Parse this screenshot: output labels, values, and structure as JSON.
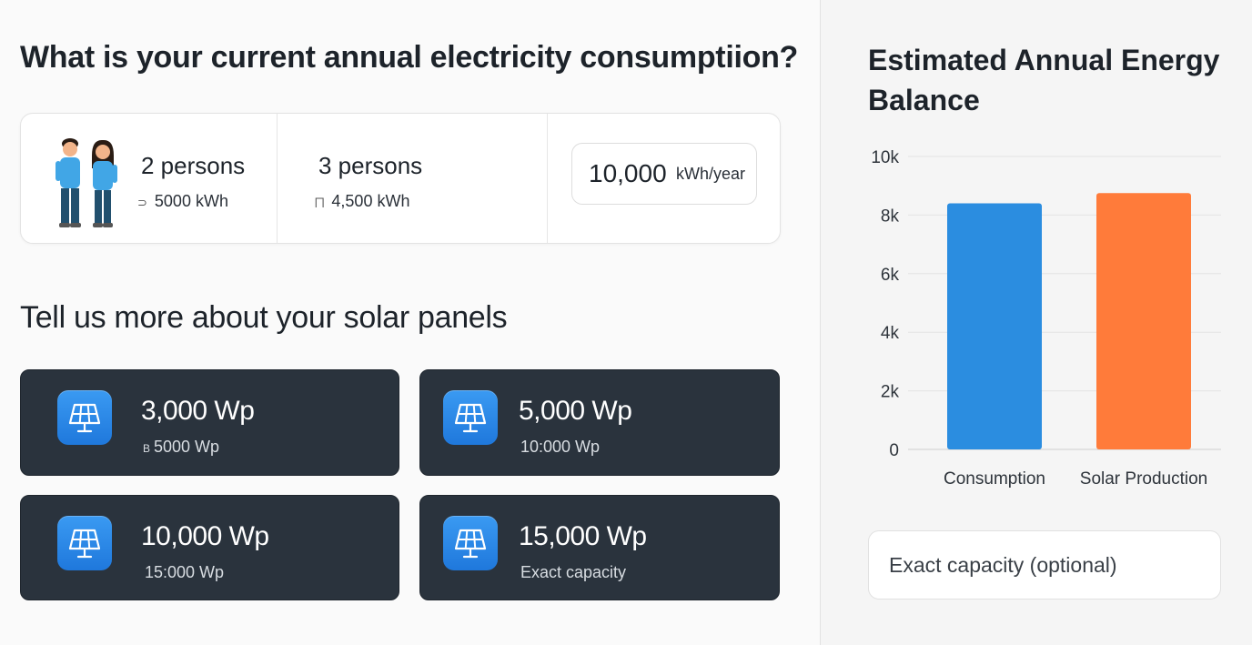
{
  "consumption": {
    "question": "What is your current annual electricity consumptiion?",
    "options": [
      {
        "title": "2 persons",
        "sub_glyph": "⊃",
        "sub": "5000 kWh"
      },
      {
        "title": "3 persons",
        "sub_glyph": "⨅",
        "sub": "4,500 kWh"
      }
    ],
    "custom": {
      "value": "10,000",
      "unit": "kWh/year"
    }
  },
  "solar": {
    "heading": "Tell us more about your solar panels",
    "panels": [
      {
        "title": "3,000 Wp",
        "sub_glyph": "В",
        "sub": "5000 Wp"
      },
      {
        "title": "5,000 Wp",
        "sub_glyph": "",
        "sub": "10:000 Wp"
      },
      {
        "title": "10,000 Wp",
        "sub_glyph": "",
        "sub": "15:000 Wp"
      },
      {
        "title": "15,000 Wp",
        "sub_glyph": "",
        "sub": "Exact capacity"
      }
    ],
    "icon": "solar-panel-icon"
  },
  "balance": {
    "heading": "Estimated Annual Energy Balance",
    "capacity_placeholder": "Exact capacity (optional)"
  },
  "chart_data": {
    "type": "bar",
    "title": "Estimated Annual Energy Balance",
    "categories": [
      "Consumption",
      "Solar Production"
    ],
    "values": [
      8400,
      8750
    ],
    "colors": [
      "#2b8de0",
      "#ff7b3a"
    ],
    "ylim": [
      0,
      10000
    ],
    "yticks": [
      0,
      2000,
      4000,
      6000,
      8000,
      10000
    ],
    "ytick_labels": [
      "0",
      "2k",
      "4k",
      "6k",
      "8k",
      "10k"
    ],
    "grid": true,
    "xlabel": "",
    "ylabel": ""
  }
}
